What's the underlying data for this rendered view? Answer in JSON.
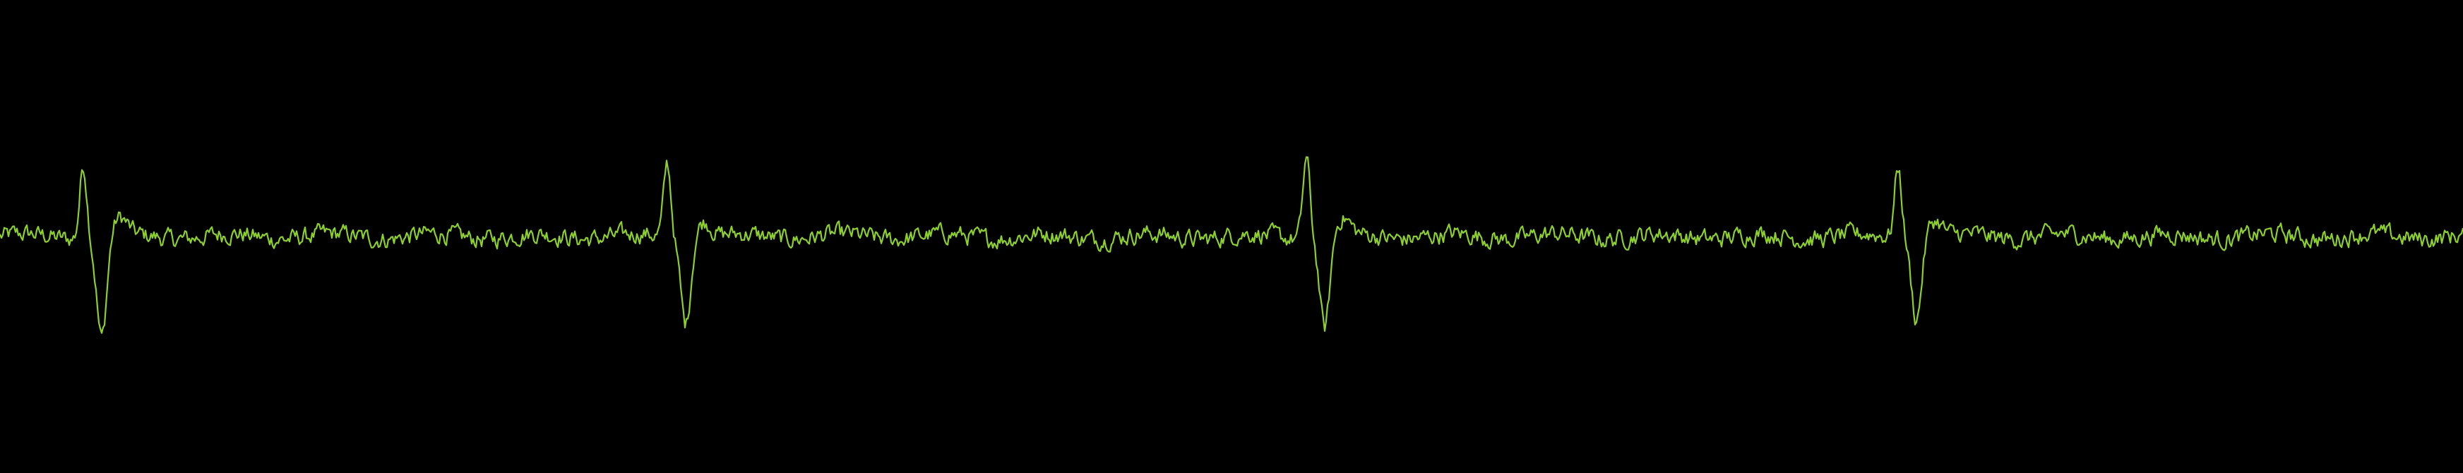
{
  "chart_data": {
    "type": "line",
    "title": "",
    "xlabel": "",
    "ylabel": "",
    "grid": false,
    "legend": "none",
    "xlim": [
      0,
      3488
    ],
    "ylim": [
      -1,
      1
    ],
    "baseline": 0.0,
    "noise_amplitude": 0.035,
    "series": [
      {
        "color": "#8ccf2e",
        "peaks": [
          {
            "x": 118,
            "amplitude": 0.31,
            "trough": -0.43
          },
          {
            "x": 945,
            "amplitude": 0.31,
            "trough": -0.36
          },
          {
            "x": 1850,
            "amplitude": 0.34,
            "trough": -0.39
          },
          {
            "x": 2688,
            "amplitude": 0.3,
            "trough": -0.34
          }
        ]
      }
    ]
  }
}
